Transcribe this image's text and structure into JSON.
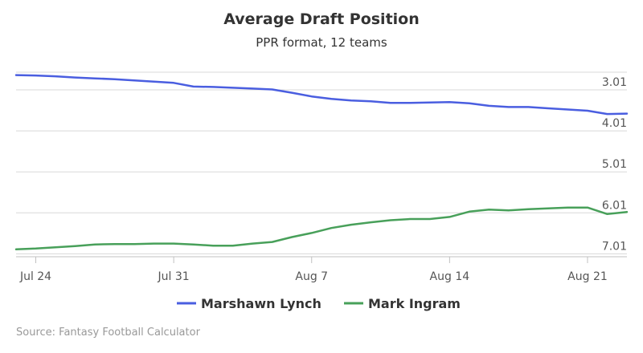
{
  "chart_data": {
    "type": "line",
    "title": "Average Draft Position",
    "subtitle": "PPR format, 12 teams",
    "x_tick_labels": [
      "Jul 24",
      "Jul 31",
      "Aug 7",
      "Aug 14",
      "Aug 21"
    ],
    "x_tick_days": [
      1,
      8,
      15,
      22,
      29
    ],
    "x_range_days": [
      0,
      31
    ],
    "y_tick_labels": [
      "3.01",
      "4.01",
      "5.01",
      "6.01",
      "7.01"
    ],
    "y_tick_values": [
      3.01,
      4.01,
      5.01,
      6.01,
      7.01
    ],
    "y_range": [
      2.58,
      7.08
    ],
    "y_reversed": true,
    "y_axis_side": "right",
    "grid": true,
    "legend_position": "bottom-center",
    "series": [
      {
        "name": "Marshawn Lynch",
        "color": "#4a5ee0",
        "x": [
          0,
          1,
          2,
          3,
          4,
          5,
          6,
          7,
          8,
          9,
          10,
          11,
          12,
          13,
          14,
          15,
          16,
          17,
          18,
          19,
          20,
          21,
          22,
          23,
          24,
          25,
          26,
          27,
          28,
          29,
          30,
          31
        ],
        "y": [
          2.65,
          2.66,
          2.68,
          2.71,
          2.73,
          2.75,
          2.78,
          2.81,
          2.84,
          2.93,
          2.94,
          2.96,
          2.98,
          3.0,
          3.08,
          3.17,
          3.23,
          3.27,
          3.29,
          3.33,
          3.33,
          3.32,
          3.31,
          3.34,
          3.4,
          3.43,
          3.43,
          3.46,
          3.49,
          3.52,
          3.6,
          3.59
        ]
      },
      {
        "name": "Mark Ingram",
        "color": "#48a05a",
        "x": [
          0,
          1,
          2,
          3,
          4,
          5,
          6,
          7,
          8,
          9,
          10,
          11,
          12,
          13,
          14,
          15,
          16,
          17,
          18,
          19,
          20,
          21,
          22,
          23,
          24,
          25,
          26,
          27,
          28,
          29,
          30,
          31
        ],
        "y": [
          6.9,
          6.88,
          6.85,
          6.82,
          6.78,
          6.77,
          6.77,
          6.76,
          6.76,
          6.78,
          6.81,
          6.81,
          6.76,
          6.72,
          6.6,
          6.5,
          6.38,
          6.3,
          6.24,
          6.19,
          6.16,
          6.16,
          6.11,
          5.98,
          5.93,
          5.95,
          5.92,
          5.9,
          5.88,
          5.88,
          6.04,
          5.99
        ]
      }
    ]
  },
  "credits": "Source: Fantasy Football Calculator"
}
